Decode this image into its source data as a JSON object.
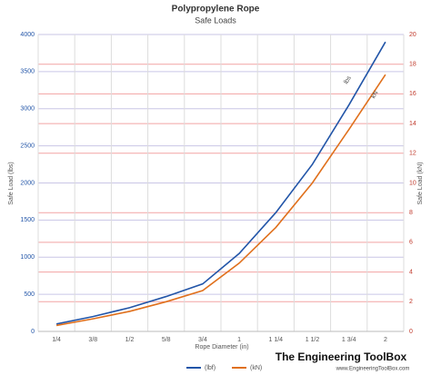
{
  "chart_data": {
    "type": "line",
    "title": "Polypropylene Rope",
    "subtitle": "Safe Loads",
    "x_label": "Rope Diameter (in)",
    "y_label": "Safe Load (lbs)",
    "y2_label": "Safe Load (kN)",
    "categories": [
      "1/4",
      "3/8",
      "1/2",
      "5/8",
      "3/4",
      "1",
      "1 1/4",
      "1 1/2",
      "1 3/4",
      "2"
    ],
    "series": [
      {
        "name": "(lbf)",
        "color": "#2255a8",
        "values": [
          100,
          200,
          320,
          470,
          640,
          1050,
          1600,
          2250,
          3050,
          3900
        ]
      },
      {
        "name": "(kN)",
        "color": "#e0701c",
        "axis": "y2",
        "values": [
          0.4,
          0.85,
          1.35,
          2.0,
          2.75,
          4.6,
          7.0,
          10.0,
          13.6,
          17.3
        ]
      }
    ],
    "ylim": [
      0,
      4000
    ],
    "yticks": [
      0,
      500,
      1000,
      1500,
      2000,
      2500,
      3000,
      3500,
      4000
    ],
    "y2lim": [
      0,
      20
    ],
    "y2ticks": [
      0,
      2,
      4,
      6,
      8,
      10,
      12,
      14,
      16,
      18,
      20
    ],
    "grid": true,
    "legend": "bottom",
    "annotations": [
      "lbs",
      "kN"
    ],
    "watermark": "The Engineering ToolBox",
    "watermark_url": "www.EngineeringToolBox.com"
  }
}
